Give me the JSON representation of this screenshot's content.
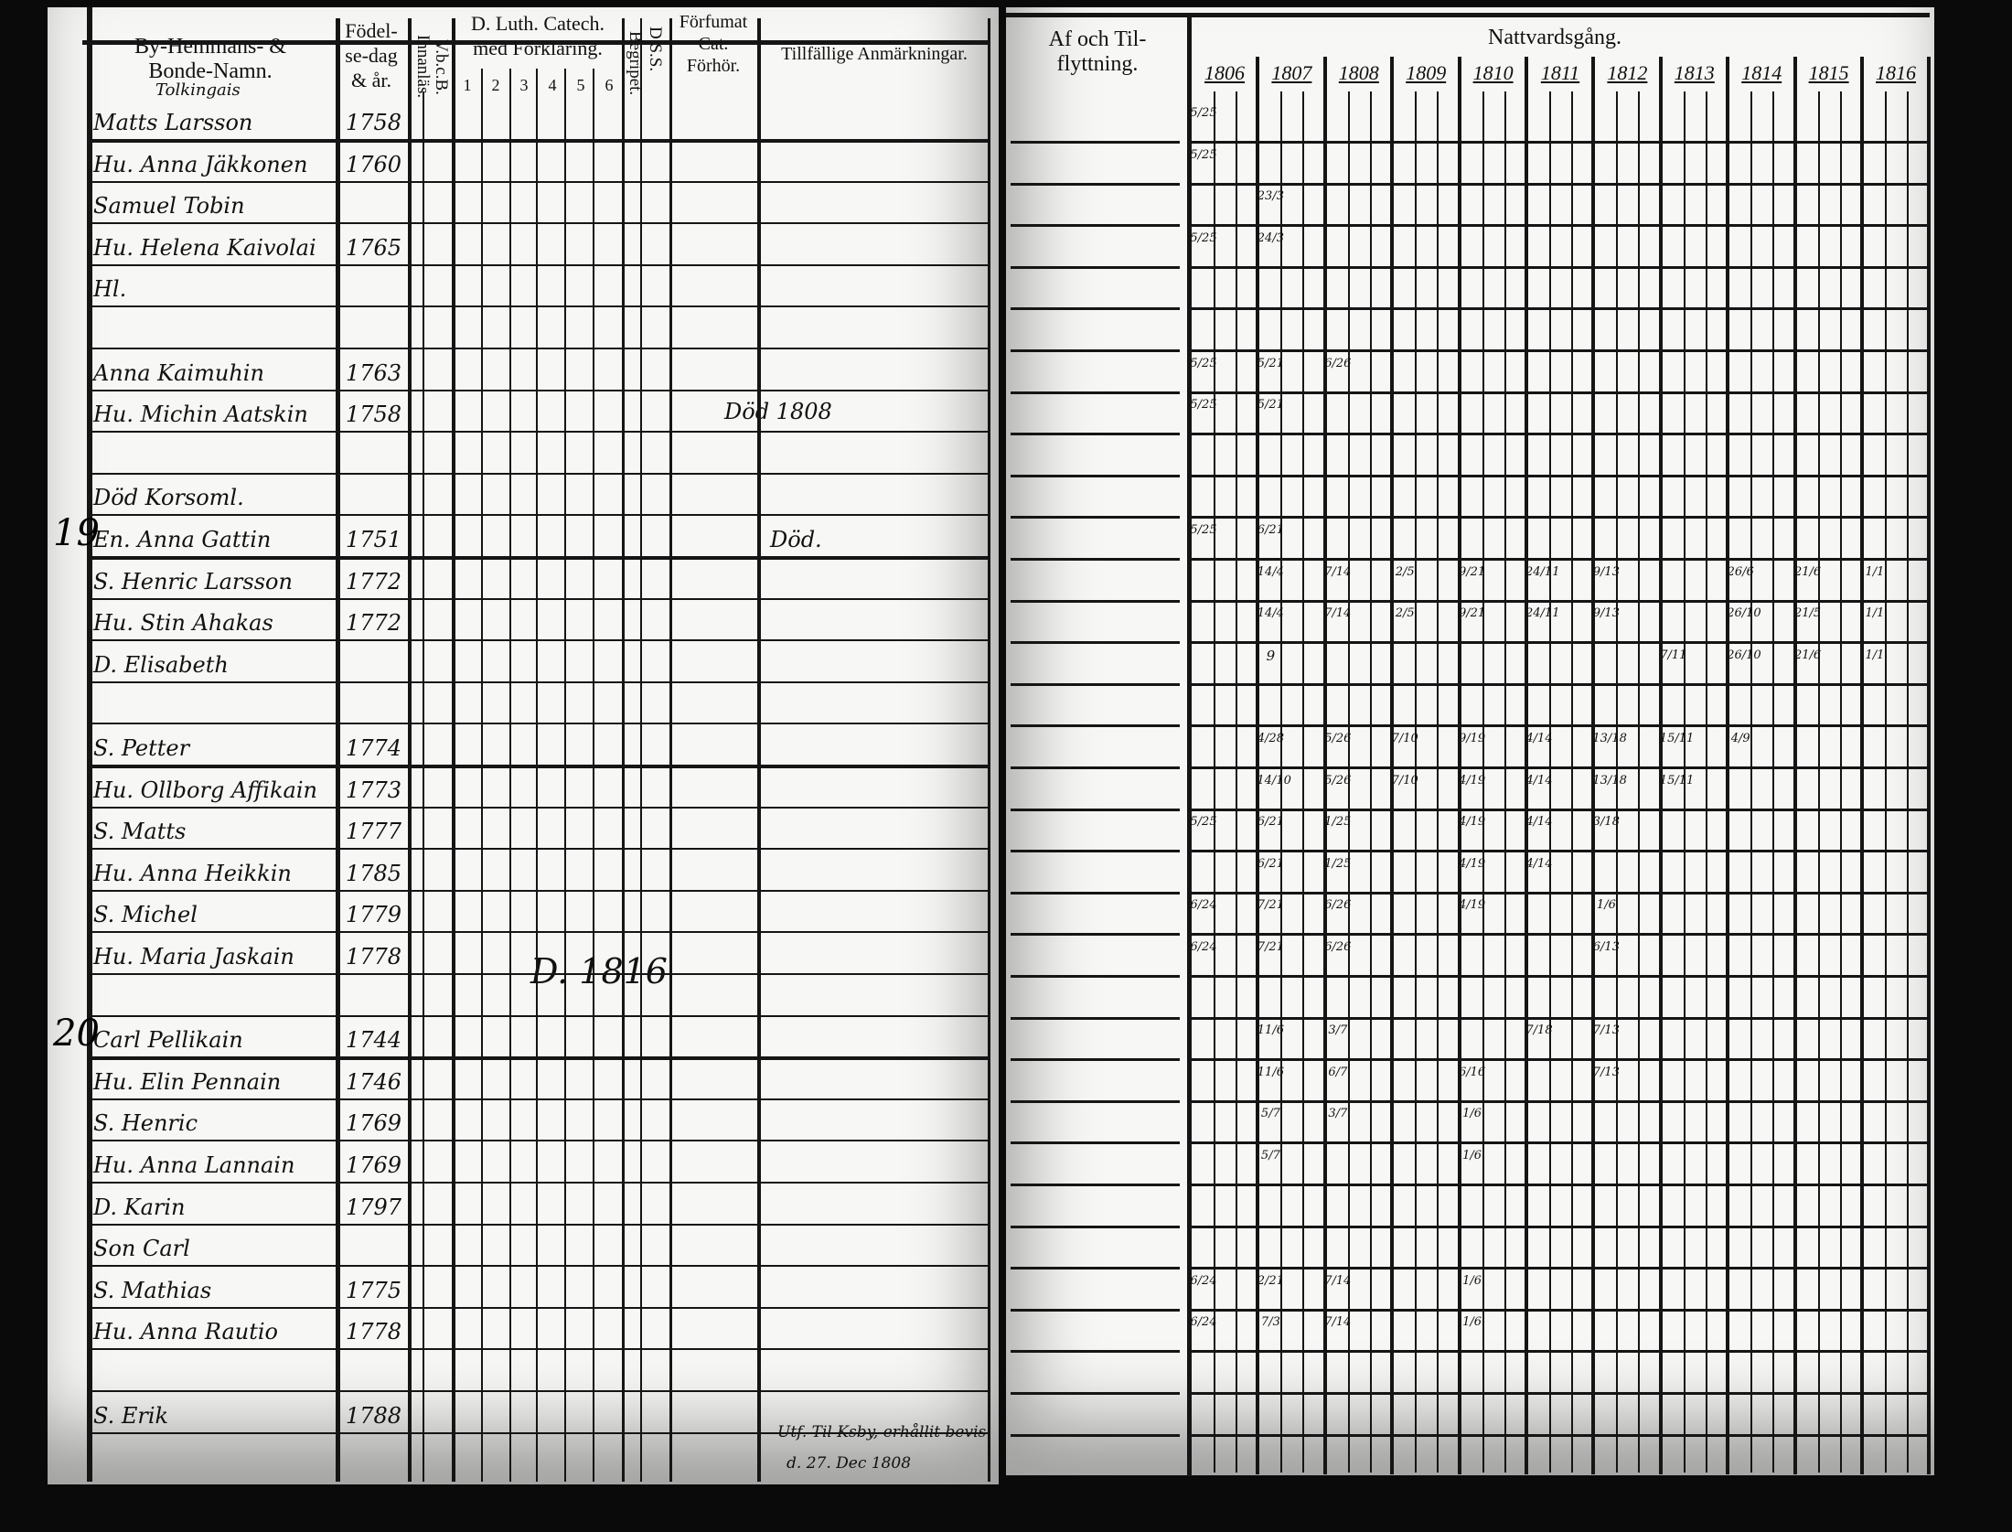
{
  "left_page": {
    "headers": {
      "name": "By-Hemmans- & Bonde-Namn.",
      "name_sub": "Tolkingais",
      "birth": "Födel-se-dag & år.",
      "vbcb": "V.b.c.B. Innanläs.",
      "catechism": "D. Luth. Catech. med Förklaring.",
      "catechism_parts": [
        "1",
        "2",
        "3",
        "4",
        "5",
        "6"
      ],
      "begrip": "Begripet.",
      "dss": "D.S.S.",
      "forfum": "Förfumat Cat. Förhör.",
      "remarks": "Tillfällige Anmärkningar."
    },
    "household_numbers": [
      {
        "row": 10,
        "label": "19"
      },
      {
        "row": 22,
        "label": "20"
      }
    ],
    "rows": [
      {
        "name": "Matts Larsson",
        "year": "1758"
      },
      {
        "name": "Hu. Anna Jäkkonen",
        "year": "1760"
      },
      {
        "name": "Samuel Tobin",
        "year": ""
      },
      {
        "name": "Hu. Helena Kaivolai",
        "year": "1765"
      },
      {
        "name": "Hl.",
        "year": ""
      },
      {
        "name": "",
        "year": ""
      },
      {
        "name": "Anna Kaimuhin",
        "year": "1763"
      },
      {
        "name": "Hu. Michin Aatskin",
        "year": "1758"
      },
      {
        "name": "",
        "year": ""
      },
      {
        "name": "Död Korsoml.",
        "year": ""
      },
      {
        "name": "En. Anna Gattin",
        "year": "1751"
      },
      {
        "name": "S. Henric Larsson",
        "year": "1772"
      },
      {
        "name": "Hu. Stin Ahakas",
        "year": "1772"
      },
      {
        "name": "D. Elisabeth",
        "year": ""
      },
      {
        "name": "",
        "year": ""
      },
      {
        "name": "S. Petter",
        "year": "1774"
      },
      {
        "name": "Hu. Ollborg Affikain",
        "year": "1773"
      },
      {
        "name": "S. Matts",
        "year": "1777"
      },
      {
        "name": "Hu. Anna Heikkin",
        "year": "1785"
      },
      {
        "name": "S. Michel",
        "year": "1779"
      },
      {
        "name": "Hu. Maria Jaskain",
        "year": "1778"
      },
      {
        "name": "",
        "year": ""
      },
      {
        "name": "Carl Pellikain",
        "year": "1744"
      },
      {
        "name": "Hu. Elin Pennain",
        "year": "1746"
      },
      {
        "name": "S. Henric",
        "year": "1769"
      },
      {
        "name": "Hu. Anna Lannain",
        "year": "1769"
      },
      {
        "name": "D. Karin",
        "year": "1797"
      },
      {
        "name": "Son Carl",
        "year": ""
      },
      {
        "name": "S. Mathias",
        "year": "1775"
      },
      {
        "name": "Hu. Anna Rautio",
        "year": "1778"
      },
      {
        "name": "",
        "year": ""
      },
      {
        "name": "S. Erik",
        "year": "1788"
      }
    ],
    "annotations": {
      "remark_row7": "Död 1808",
      "remark_row10": "Död.",
      "middle_row20": "D. 1816",
      "bottom_note_1": "Utf. Til Ksby, erhållit bevis",
      "bottom_note_2": "d. 27. Dec 1808"
    }
  },
  "right_page": {
    "headers": {
      "moving": "Af och Til-flyttning.",
      "communion": "Nattvardsgång.",
      "years": [
        "1806",
        "1807",
        "1808",
        "1809",
        "1810",
        "1811",
        "1812",
        "1813",
        "1814",
        "1815",
        "1816"
      ]
    },
    "entries": [
      {
        "row": 0,
        "year": "1806",
        "value": "5/25"
      },
      {
        "row": 1,
        "year": "1806",
        "value": "5/25"
      },
      {
        "row": 2,
        "year": "1807",
        "value": "23/3"
      },
      {
        "row": 3,
        "year": "1806",
        "value": "5/25"
      },
      {
        "row": 3,
        "year": "1807",
        "value": "24/3"
      },
      {
        "row": 6,
        "year": "1806",
        "value": "5/25"
      },
      {
        "row": 6,
        "year": "1807",
        "value": "5/21"
      },
      {
        "row": 6,
        "year": "1808",
        "value": "6/26"
      },
      {
        "row": 7,
        "year": "1806",
        "value": "5/25"
      },
      {
        "row": 7,
        "year": "1807",
        "value": "5/21"
      },
      {
        "row": 10,
        "year": "1806",
        "value": "5/25"
      },
      {
        "row": 10,
        "year": "1807",
        "value": "6/21"
      },
      {
        "row": 11,
        "year": "1807",
        "value": "14/4"
      },
      {
        "row": 11,
        "year": "1808",
        "value": "7/14"
      },
      {
        "row": 11,
        "year": "1809",
        "value": "2/5"
      },
      {
        "row": 11,
        "year": "1810",
        "value": "9/21"
      },
      {
        "row": 11,
        "year": "1811",
        "value": "24/11"
      },
      {
        "row": 11,
        "year": "1812",
        "value": "9/13"
      },
      {
        "row": 11,
        "year": "1814",
        "value": "26/6"
      },
      {
        "row": 11,
        "year": "1815",
        "value": "21/6"
      },
      {
        "row": 11,
        "year": "1816",
        "value": "1/1"
      },
      {
        "row": 12,
        "year": "1807",
        "value": "14/4"
      },
      {
        "row": 12,
        "year": "1808",
        "value": "7/14"
      },
      {
        "row": 12,
        "year": "1809",
        "value": "2/5"
      },
      {
        "row": 12,
        "year": "1810",
        "value": "9/21"
      },
      {
        "row": 12,
        "year": "1811",
        "value": "24/11"
      },
      {
        "row": 12,
        "year": "1812",
        "value": "9/13"
      },
      {
        "row": 12,
        "year": "1814",
        "value": "26/10"
      },
      {
        "row": 12,
        "year": "1815",
        "value": "21/5"
      },
      {
        "row": 12,
        "year": "1816",
        "value": "1/1"
      },
      {
        "row": 13,
        "year": "1807",
        "value": "9"
      },
      {
        "row": 13,
        "year": "1813",
        "value": "7/11"
      },
      {
        "row": 13,
        "year": "1814",
        "value": "26/10"
      },
      {
        "row": 13,
        "year": "1815",
        "value": "21/6"
      },
      {
        "row": 13,
        "year": "1816",
        "value": "1/1"
      },
      {
        "row": 15,
        "year": "1807",
        "value": "4/28"
      },
      {
        "row": 15,
        "year": "1808",
        "value": "5/26"
      },
      {
        "row": 15,
        "year": "1809",
        "value": "7/10"
      },
      {
        "row": 15,
        "year": "1810",
        "value": "9/19"
      },
      {
        "row": 15,
        "year": "1811",
        "value": "4/14"
      },
      {
        "row": 15,
        "year": "1812",
        "value": "13/18"
      },
      {
        "row": 15,
        "year": "1813",
        "value": "15/11"
      },
      {
        "row": 15,
        "year": "1814",
        "value": "4/9"
      },
      {
        "row": 16,
        "year": "1807",
        "value": "14/10"
      },
      {
        "row": 16,
        "year": "1808",
        "value": "5/26"
      },
      {
        "row": 16,
        "year": "1809",
        "value": "7/10"
      },
      {
        "row": 16,
        "year": "1810",
        "value": "4/19"
      },
      {
        "row": 16,
        "year": "1811",
        "value": "4/14"
      },
      {
        "row": 16,
        "year": "1812",
        "value": "13/18"
      },
      {
        "row": 16,
        "year": "1813",
        "value": "15/11"
      },
      {
        "row": 17,
        "year": "1806",
        "value": "5/25"
      },
      {
        "row": 17,
        "year": "1807",
        "value": "6/21"
      },
      {
        "row": 17,
        "year": "1808",
        "value": "1/25"
      },
      {
        "row": 17,
        "year": "1810",
        "value": "4/19"
      },
      {
        "row": 17,
        "year": "1811",
        "value": "4/14"
      },
      {
        "row": 17,
        "year": "1812",
        "value": "3/18"
      },
      {
        "row": 18,
        "year": "1807",
        "value": "6/21"
      },
      {
        "row": 18,
        "year": "1808",
        "value": "1/25"
      },
      {
        "row": 18,
        "year": "1810",
        "value": "4/19"
      },
      {
        "row": 18,
        "year": "1811",
        "value": "4/14"
      },
      {
        "row": 19,
        "year": "1806",
        "value": "6/24"
      },
      {
        "row": 19,
        "year": "1807",
        "value": "7/21"
      },
      {
        "row": 19,
        "year": "1808",
        "value": "6/26"
      },
      {
        "row": 19,
        "year": "1810",
        "value": "4/19"
      },
      {
        "row": 19,
        "year": "1812",
        "value": "1/6"
      },
      {
        "row": 20,
        "year": "1806",
        "value": "6/24"
      },
      {
        "row": 20,
        "year": "1807",
        "value": "7/21"
      },
      {
        "row": 20,
        "year": "1808",
        "value": "6/26"
      },
      {
        "row": 20,
        "year": "1812",
        "value": "6/13"
      },
      {
        "row": 22,
        "year": "1807",
        "value": "11/6"
      },
      {
        "row": 22,
        "year": "1808",
        "value": "3/7"
      },
      {
        "row": 22,
        "year": "1811",
        "value": "7/18"
      },
      {
        "row": 22,
        "year": "1812",
        "value": "7/13"
      },
      {
        "row": 23,
        "year": "1807",
        "value": "11/6"
      },
      {
        "row": 23,
        "year": "1808",
        "value": "6/7"
      },
      {
        "row": 23,
        "year": "1810",
        "value": "6/16"
      },
      {
        "row": 23,
        "year": "1812",
        "value": "7/13"
      },
      {
        "row": 24,
        "year": "1807",
        "value": "5/7"
      },
      {
        "row": 24,
        "year": "1808",
        "value": "3/7"
      },
      {
        "row": 24,
        "year": "1810",
        "value": "1/6"
      },
      {
        "row": 25,
        "year": "1807",
        "value": "5/7"
      },
      {
        "row": 25,
        "year": "1810",
        "value": "1/6"
      },
      {
        "row": 28,
        "year": "1806",
        "value": "6/24"
      },
      {
        "row": 28,
        "year": "1807",
        "value": "2/21"
      },
      {
        "row": 28,
        "year": "1808",
        "value": "7/14"
      },
      {
        "row": 28,
        "year": "1810",
        "value": "1/6"
      },
      {
        "row": 29,
        "year": "1806",
        "value": "6/24"
      },
      {
        "row": 29,
        "year": "1807",
        "value": "7/3"
      },
      {
        "row": 29,
        "year": "1808",
        "value": "7/14"
      },
      {
        "row": 29,
        "year": "1810",
        "value": "1/6"
      }
    ]
  }
}
